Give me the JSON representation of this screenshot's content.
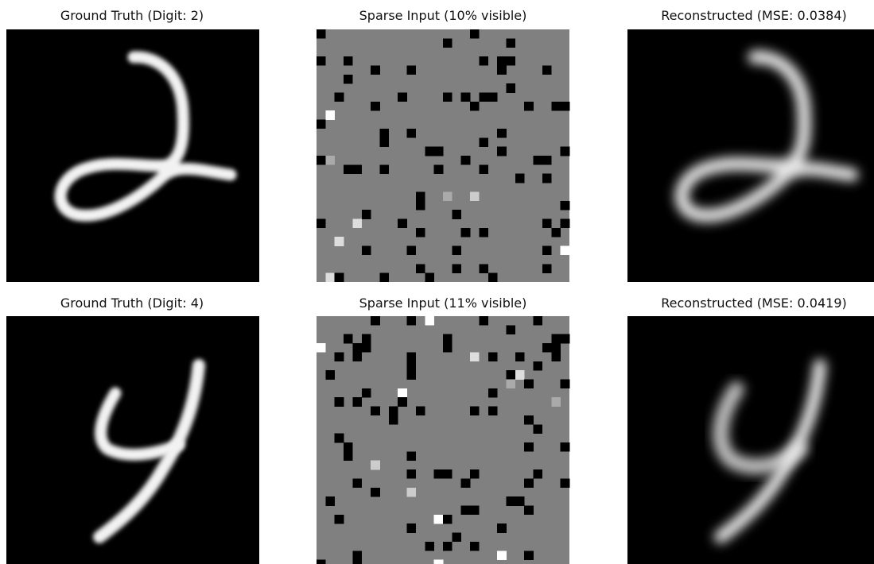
{
  "panels": [
    {
      "title": "Ground Truth (Digit: 2)"
    },
    {
      "title": "Sparse Input (10% visible)"
    },
    {
      "title": "Reconstructed (MSE: 0.0384)"
    },
    {
      "title": "Ground Truth (Digit: 4)"
    },
    {
      "title": "Sparse Input (11% visible)"
    },
    {
      "title": "Reconstructed (MSE: 0.0419)"
    }
  ]
}
